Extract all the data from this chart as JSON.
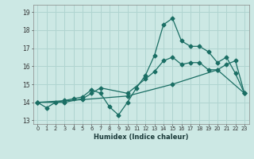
{
  "xlabel": "Humidex (Indice chaleur)",
  "bg_color": "#cce8e4",
  "grid_color": "#b0d4d0",
  "line_color": "#1a6e64",
  "xlim": [
    -0.5,
    23.5
  ],
  "ylim": [
    12.8,
    19.4
  ],
  "xticks": [
    0,
    1,
    2,
    3,
    4,
    5,
    6,
    7,
    8,
    9,
    10,
    11,
    12,
    13,
    14,
    15,
    16,
    17,
    18,
    19,
    20,
    21,
    22,
    23
  ],
  "yticks": [
    13,
    14,
    15,
    16,
    17,
    18,
    19
  ],
  "line1_x": [
    0,
    1,
    2,
    3,
    4,
    5,
    6,
    7,
    8,
    9,
    10,
    11,
    12,
    13,
    14,
    15,
    16,
    17,
    18,
    19,
    20,
    21,
    22,
    23
  ],
  "line1_y": [
    14.0,
    13.7,
    14.0,
    14.1,
    14.2,
    14.3,
    14.7,
    14.5,
    13.75,
    13.3,
    14.0,
    14.8,
    15.5,
    16.6,
    18.3,
    18.65,
    17.4,
    17.1,
    17.1,
    16.8,
    16.2,
    16.5,
    15.6,
    14.5
  ],
  "line2_x": [
    0,
    3,
    5,
    6,
    7,
    10,
    12,
    13,
    14,
    15,
    16,
    17,
    18,
    19,
    20,
    21,
    22,
    23
  ],
  "line2_y": [
    14.0,
    14.0,
    14.2,
    14.5,
    14.8,
    14.5,
    15.3,
    15.7,
    16.3,
    16.5,
    16.1,
    16.2,
    16.2,
    15.8,
    15.8,
    16.1,
    16.3,
    14.5
  ],
  "line3_x": [
    0,
    5,
    10,
    15,
    20,
    23
  ],
  "line3_y": [
    14.0,
    14.15,
    14.35,
    15.0,
    15.8,
    14.5
  ]
}
